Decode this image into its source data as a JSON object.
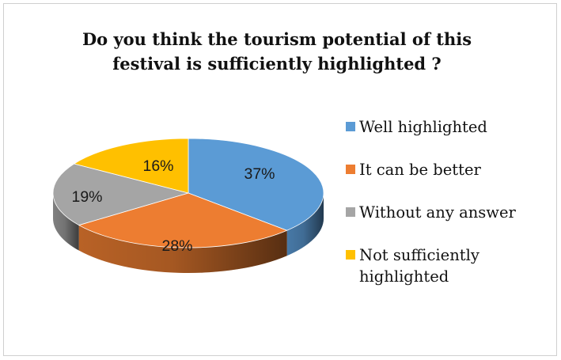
{
  "chart_data": {
    "type": "pie",
    "title": "Do you think the tourism potential of this festival is sufficiently highlighted ?",
    "title_lines": [
      "Do you think the tourism potential of this",
      "festival is sufficiently highlighted ?"
    ],
    "categories": [
      "Well highlighted",
      "It can be better",
      "Without any answer",
      "Not sufficiently highlighted"
    ],
    "values": [
      37,
      28,
      19,
      16
    ],
    "value_labels": [
      "37%",
      "28%",
      "19%",
      "16%"
    ],
    "colors": [
      "#5B9BD5",
      "#ED7D31",
      "#A5A5A5",
      "#FFC000"
    ],
    "style": "3d",
    "legend_position": "right"
  }
}
